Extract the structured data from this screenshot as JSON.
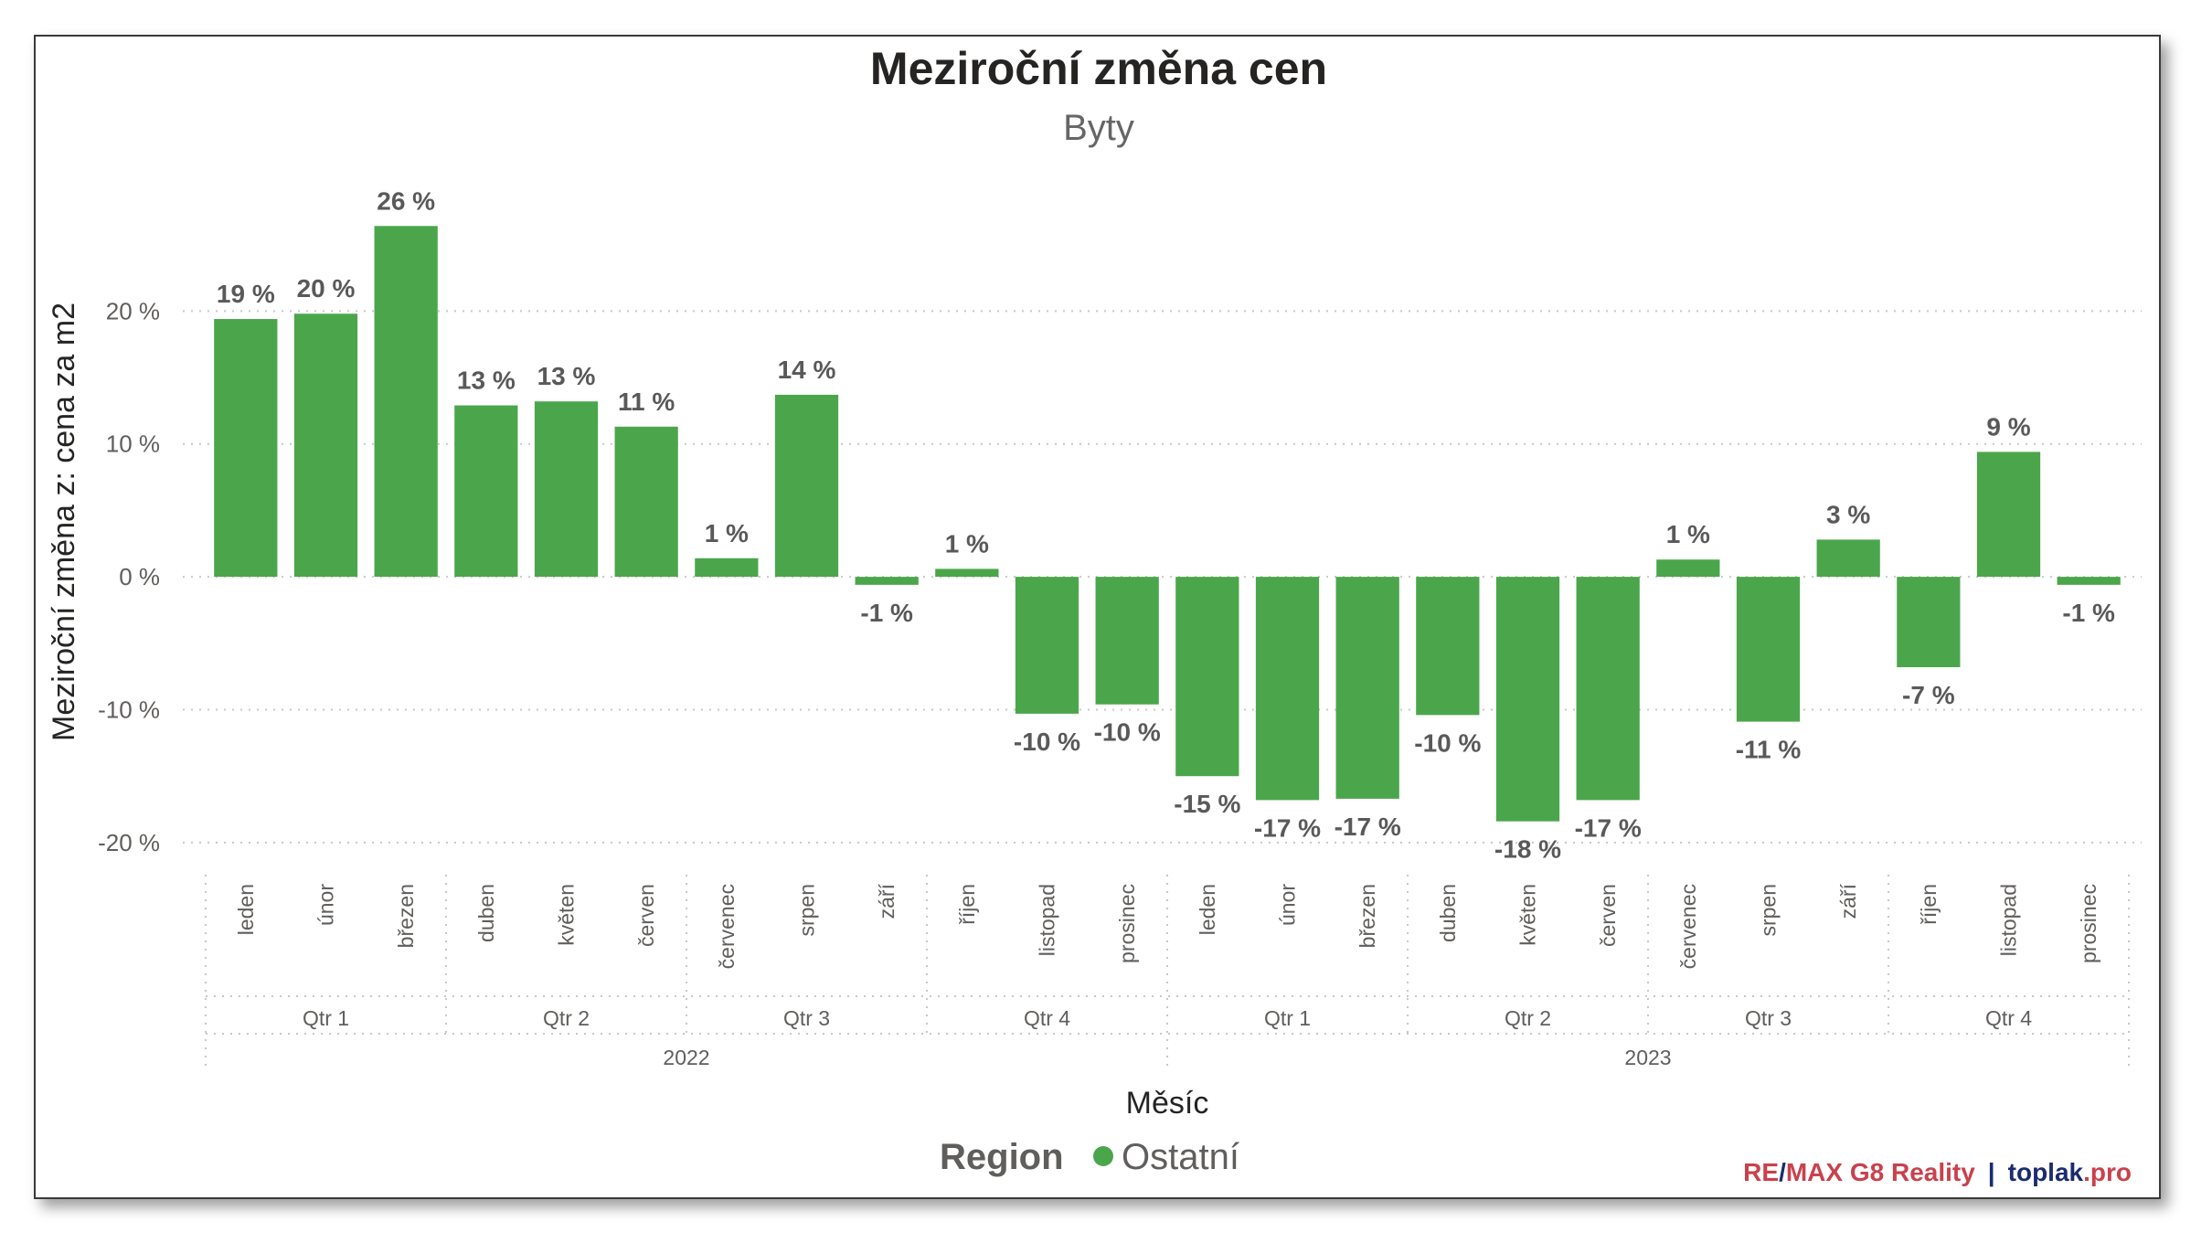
{
  "chart_data": {
    "type": "bar",
    "title": "Meziroční změna cen",
    "subtitle": "Byty",
    "xlabel": "Měsíc",
    "ylabel": "Meziroční změna z: cena za m2",
    "ylim": [
      -22,
      28
    ],
    "yticks": [
      20,
      10,
      0,
      -10,
      -20
    ],
    "ytick_labels": [
      "20 %",
      "10 %",
      "0 %",
      "-10 %",
      "-20 %"
    ],
    "grid": true,
    "years": [
      {
        "label": "2022",
        "quarters": [
          {
            "label": "Qtr 1",
            "months": [
              "leden",
              "únor",
              "březen"
            ]
          },
          {
            "label": "Qtr 2",
            "months": [
              "duben",
              "květen",
              "červen"
            ]
          },
          {
            "label": "Qtr 3",
            "months": [
              "červenec",
              "srpen",
              "září"
            ]
          },
          {
            "label": "Qtr 4",
            "months": [
              "říjen",
              "listopad",
              "prosinec"
            ]
          }
        ]
      },
      {
        "label": "2023",
        "quarters": [
          {
            "label": "Qtr 1",
            "months": [
              "leden",
              "únor",
              "březen"
            ]
          },
          {
            "label": "Qtr 2",
            "months": [
              "duben",
              "květen",
              "červen"
            ]
          },
          {
            "label": "Qtr 3",
            "months": [
              "červenec",
              "srpen",
              "září"
            ]
          },
          {
            "label": "Qtr 4",
            "months": [
              "říjen",
              "listopad",
              "prosinec"
            ]
          }
        ]
      }
    ],
    "series": [
      {
        "name": "Ostatní",
        "color": "#4BA64B",
        "values": [
          19.4,
          19.8,
          26.4,
          12.9,
          13.2,
          11.3,
          1.4,
          13.7,
          -0.6,
          0.6,
          -10.3,
          -9.6,
          -15.0,
          -16.8,
          -16.7,
          -10.4,
          -18.4,
          -16.8,
          1.3,
          -10.9,
          2.8,
          -6.8,
          9.4,
          -0.6
        ],
        "labels": [
          "19 %",
          "20 %",
          "26 %",
          "13 %",
          "13 %",
          "11 %",
          "1 %",
          "14 %",
          "-1 %",
          "1 %",
          "-10 %",
          "-10 %",
          "-15 %",
          "-17 %",
          "-17 %",
          "-10 %",
          "-18 %",
          "-17 %",
          "1 %",
          "-11 %",
          "3 %",
          "-7 %",
          "9 %",
          "-1 %"
        ]
      }
    ],
    "legend": {
      "title": "Region",
      "position": "bottom-center"
    }
  },
  "branding": {
    "remax_re": "RE",
    "remax_slash": "/",
    "remax_rest": "MAX G8 Reality",
    "separator": "|",
    "site_name": "toplak",
    "site_tld": ".pro",
    "red": "#C9414C",
    "navy": "#1C2B6E"
  }
}
